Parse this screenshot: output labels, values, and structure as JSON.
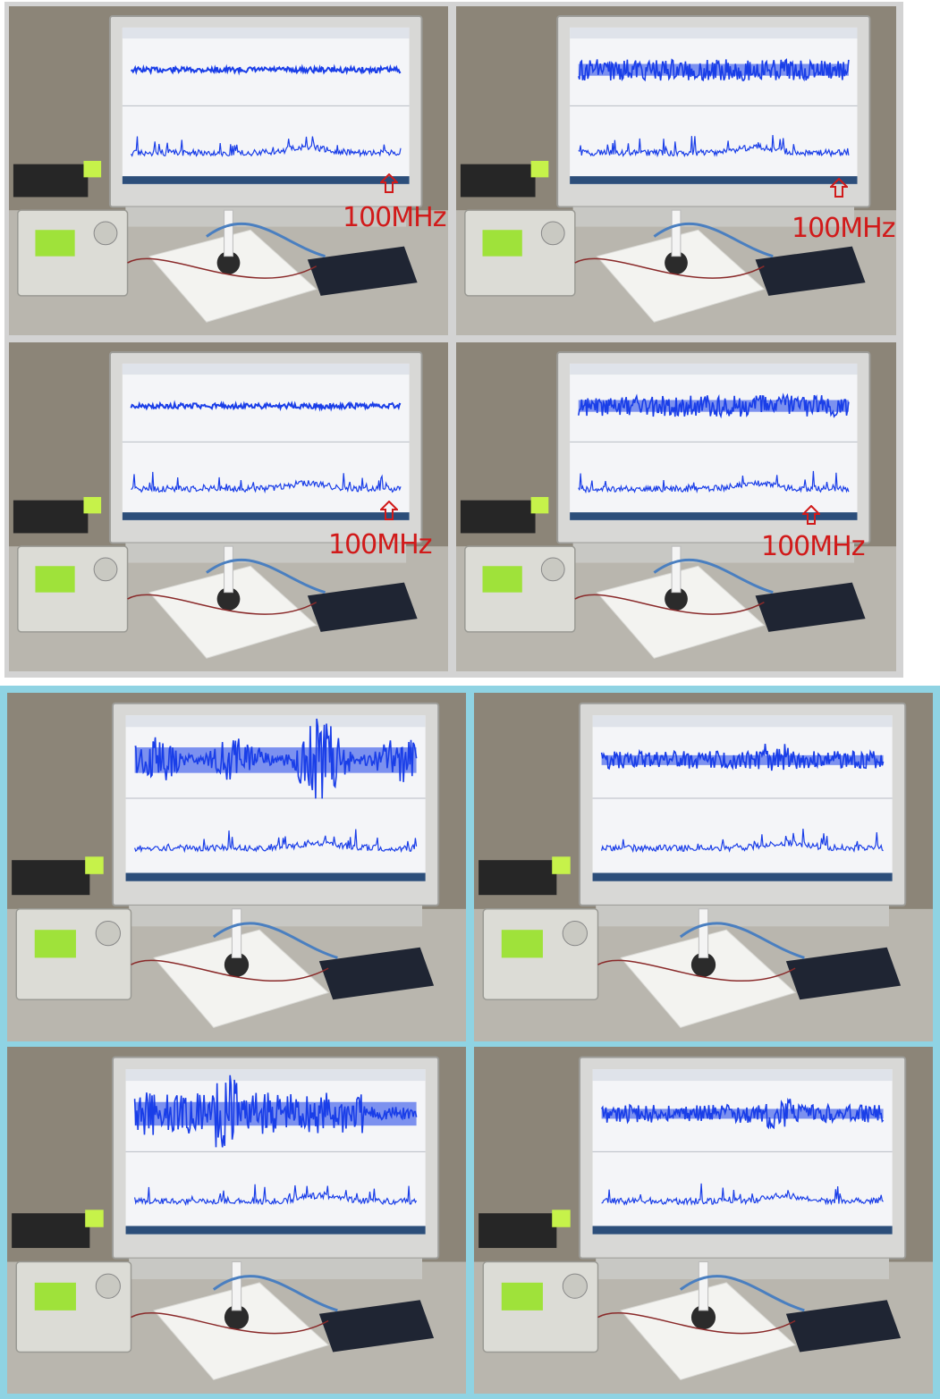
{
  "annotation_label": "100MHz",
  "colors": {
    "trace": "#1a3ee8",
    "annotation": "#d11a1a",
    "bottom_frame": "#8fd3e3",
    "top_frame": "#d3d3d3"
  },
  "icons": {
    "arrow": "up-arrow-outline-icon"
  },
  "groups": {
    "top": {
      "photos": [
        {
          "label": "100MHz"
        },
        {
          "label": "100MHz"
        },
        {
          "label": "100MHz"
        },
        {
          "label": "100MHz"
        }
      ]
    },
    "bottom": {
      "photos": [
        {},
        {},
        {},
        {}
      ]
    }
  }
}
